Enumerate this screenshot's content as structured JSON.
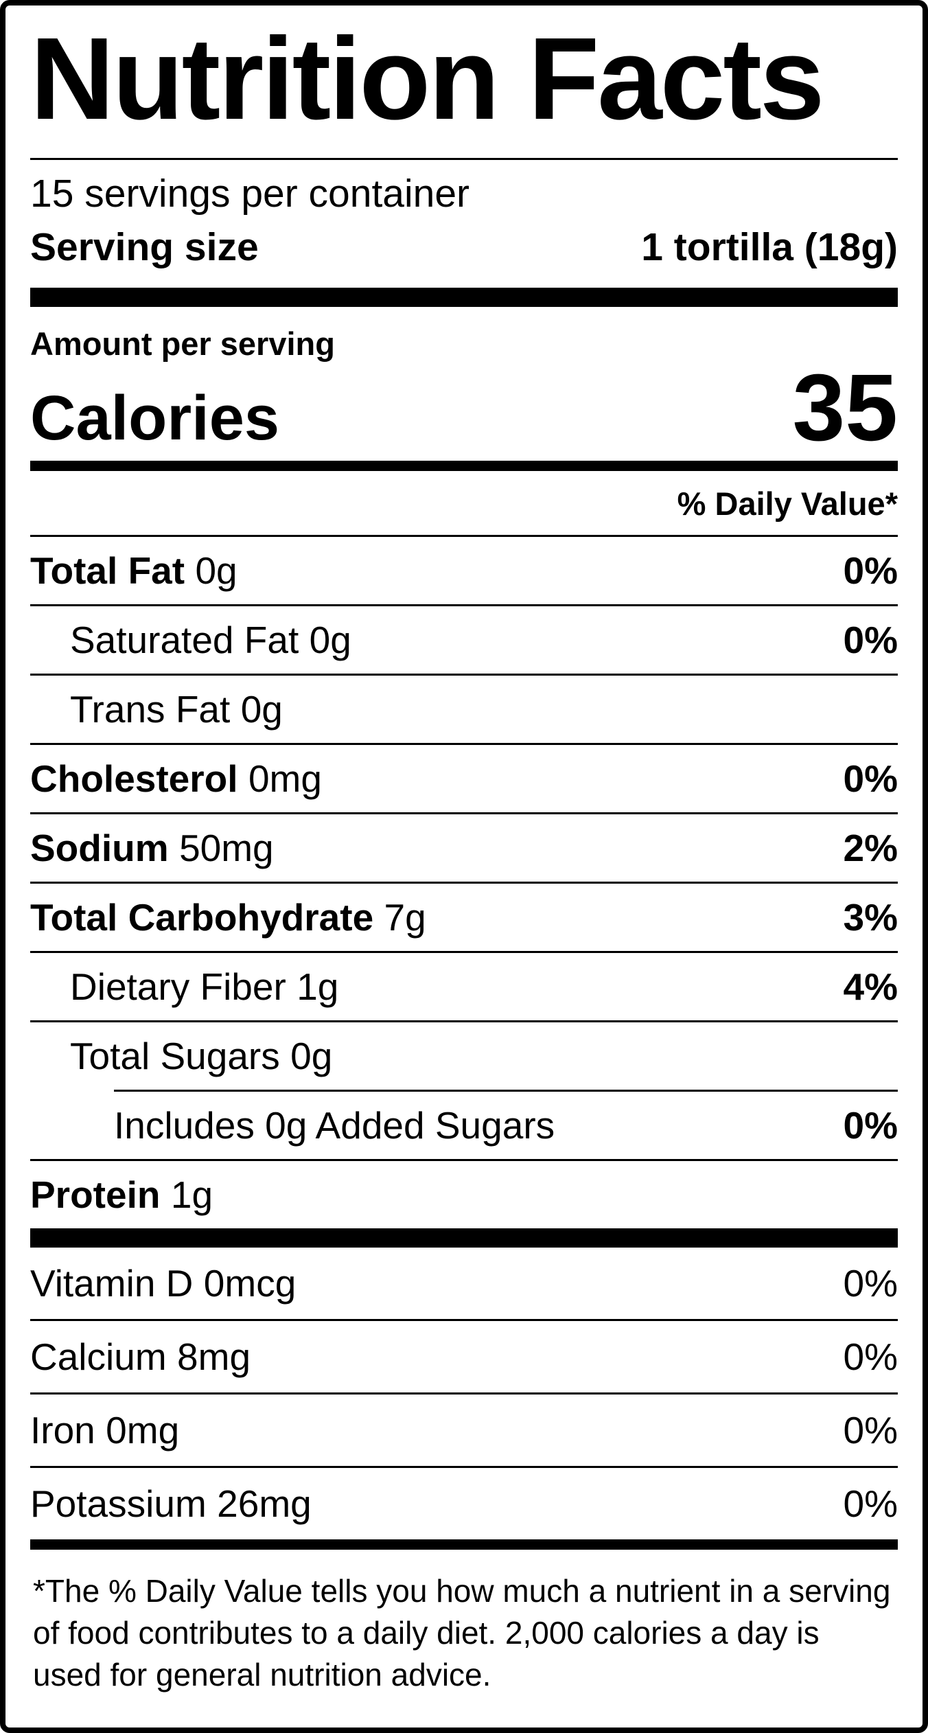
{
  "label": {
    "title": "Nutrition Facts",
    "servings_per_container": "15 servings per container",
    "serving_size_label": "Serving size",
    "serving_size_value": "1 tortilla (18g)",
    "amount_per_serving": "Amount per serving",
    "calories_label": "Calories",
    "calories_value": "35",
    "daily_value_header": "% Daily Value*",
    "nutrients": [
      {
        "name": "Total Fat",
        "amount": "0g",
        "dv": "0%"
      },
      {
        "name": "Saturated Fat",
        "amount": "0g",
        "dv": "0%"
      },
      {
        "name": "Trans Fat",
        "amount": "0g",
        "dv": ""
      },
      {
        "name": "Cholesterol",
        "amount": "0mg",
        "dv": "0%"
      },
      {
        "name": "Sodium",
        "amount": "50mg",
        "dv": "2%"
      },
      {
        "name": "Total Carbohydrate",
        "amount": "7g",
        "dv": "3%"
      },
      {
        "name": "Dietary Fiber",
        "amount": "1g",
        "dv": "4%"
      },
      {
        "name": "Total Sugars",
        "amount": "0g",
        "dv": ""
      },
      {
        "name": "Includes 0g Added Sugars",
        "amount": "",
        "dv": "0%"
      },
      {
        "name": "Protein",
        "amount": "1g",
        "dv": ""
      }
    ],
    "micronutrients": [
      {
        "name": "Vitamin D",
        "amount": "0mcg",
        "dv": "0%"
      },
      {
        "name": "Calcium",
        "amount": "8mg",
        "dv": "0%"
      },
      {
        "name": "Iron",
        "amount": "0mg",
        "dv": "0%"
      },
      {
        "name": "Potassium",
        "amount": "26mg",
        "dv": "0%"
      }
    ],
    "footnote": "*The % Daily Value tells you how much a nutrient in a serving of food contributes to a daily diet. 2,000 calories a day is used for general nutrition advice.",
    "colors": {
      "ink": "#000000",
      "paper": "#ffffff"
    }
  }
}
